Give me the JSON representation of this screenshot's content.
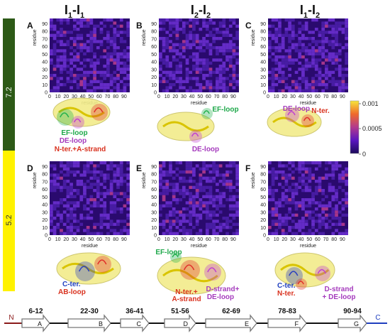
{
  "figure": {
    "column_titles": [
      {
        "main": "I",
        "sub_a": "1",
        "dash": "-",
        "main2": "I",
        "sub_b": "1"
      },
      {
        "main": "I",
        "sub_a": "2",
        "dash": "-",
        "main2": "I",
        "sub_b": "2"
      },
      {
        "main": "I",
        "sub_a": "1",
        "dash": "-",
        "main2": "I",
        "sub_b": "2"
      }
    ],
    "ph_labels": [
      "7.2",
      "5.2"
    ],
    "colors": {
      "ph72_bar": "#2d5a17",
      "ph52_bar": "#fff200",
      "map_background": "#2a0a6e",
      "protein": "#f2ec8a",
      "blue_region": "#2a3fbf",
      "red_region": "#e0302a",
      "green_region": "#23b14d",
      "magenta_region": "#c040d0",
      "strand_n_term": "#8b1a1a",
      "strand_c_term": "#1f3fbf"
    },
    "panel_annotations": {
      "A": [
        {
          "text": "EF-loop",
          "color": "#1ea84a"
        },
        {
          "text": "DE-loop",
          "color": "#a53bbd"
        },
        {
          "text": "N-ter.+A-strand",
          "color": "#d9321f"
        }
      ],
      "B": [
        {
          "text": "EF-loop",
          "color": "#1ea84a"
        },
        {
          "text": "DE-loop",
          "color": "#a53bbd"
        }
      ],
      "C": [
        {
          "text": "DE-loop",
          "color": "#a53bbd"
        },
        {
          "text": "N-ter.",
          "color": "#d9321f"
        }
      ],
      "D": [
        {
          "text": "C-ter.",
          "color": "#1f3fbf"
        },
        {
          "text": "AB-loop",
          "color": "#d9321f"
        }
      ],
      "E": [
        {
          "text": "EF-loop",
          "color": "#1ea84a"
        },
        {
          "text": "N-ter.+",
          "color": "#d9321f"
        },
        {
          "text": "A-strand",
          "color": "#d9321f"
        },
        {
          "text": "D-strand+",
          "color": "#a53bbd"
        },
        {
          "text": "DE-loop",
          "color": "#a53bbd"
        }
      ],
      "F": [
        {
          "text": "C-ter.",
          "color": "#1f3fbf"
        },
        {
          "text": "N-ter.",
          "color": "#d9321f"
        },
        {
          "text": "D-strand",
          "color": "#a53bbd"
        },
        {
          "text": "+ DE-loop",
          "color": "#a53bbd"
        }
      ]
    },
    "topology": {
      "n_label": "N",
      "c_label": "C",
      "strands": [
        {
          "range": "6-12",
          "letter": "A"
        },
        {
          "range": "22-30",
          "letter": "B"
        },
        {
          "range": "36-41",
          "letter": "C"
        },
        {
          "range": "51-56",
          "letter": "D"
        },
        {
          "range": "62-69",
          "letter": "E"
        },
        {
          "range": "78-83",
          "letter": "F"
        },
        {
          "range": "90-94",
          "letter": "G"
        }
      ]
    }
  },
  "chart_data": {
    "type": "heatmap",
    "panels": [
      "A",
      "B",
      "C",
      "D",
      "E",
      "F"
    ],
    "xlabel": "residue",
    "ylabel": "residue",
    "xlim": [
      0,
      97
    ],
    "ylim": [
      0,
      97
    ],
    "x_ticks": [
      0,
      10,
      20,
      30,
      40,
      50,
      60,
      70,
      80,
      90
    ],
    "y_ticks": [
      0,
      10,
      20,
      30,
      40,
      50,
      60,
      70,
      80,
      90
    ],
    "colorbar": {
      "min": 0,
      "max": 0.001,
      "ticks": [
        "0.001",
        "0.0005",
        "0"
      ]
    }
  }
}
